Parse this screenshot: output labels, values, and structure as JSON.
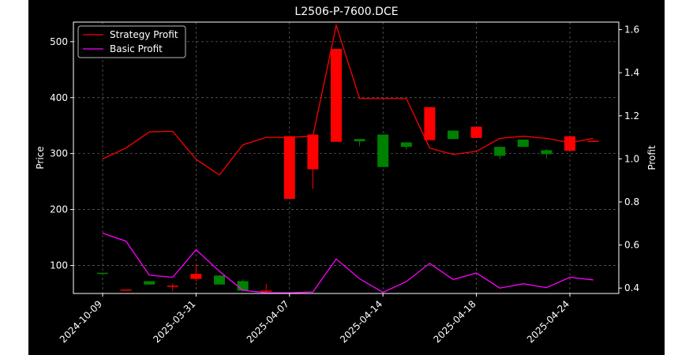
{
  "page": {
    "outer_background": "#ffffff",
    "figure_background": "#000000"
  },
  "chart_data": {
    "type": "candlestick",
    "title": "L2506-P-7600.DCE",
    "ylabel_left": "Price",
    "ylabel_right": "Profit",
    "xlabel": "",
    "grid": true,
    "legend_position": "top-left",
    "ylim_left": [
      50,
      535
    ],
    "ylim_right": [
      0.375,
      1.635
    ],
    "yticks_left": [
      100,
      200,
      300,
      400,
      500
    ],
    "yticks_right": [
      "0.4",
      "0.6",
      "0.8",
      "1.0",
      "1.2",
      "1.4",
      "1.6"
    ],
    "x_tick_labels": [
      {
        "i": 0,
        "label": "2024-10-09"
      },
      {
        "i": 4,
        "label": "2025-03-31"
      },
      {
        "i": 8,
        "label": "2025-04-07"
      },
      {
        "i": 12,
        "label": "2025-04-14"
      },
      {
        "i": 16,
        "label": "2025-04-18"
      },
      {
        "i": 20,
        "label": "2025-04-24"
      }
    ],
    "candles": [
      {
        "i": 0,
        "open": 87,
        "close": 85,
        "high": 87,
        "low": 85
      },
      {
        "i": 1,
        "open": 57,
        "close": 57,
        "high": 57,
        "low": 57
      },
      {
        "i": 2,
        "open": 72,
        "close": 66,
        "high": 72,
        "low": 65
      },
      {
        "i": 3,
        "open": 62,
        "close": 64,
        "high": 68,
        "low": 54
      },
      {
        "i": 4,
        "open": 76,
        "close": 85,
        "high": 103,
        "low": 72
      },
      {
        "i": 5,
        "open": 82,
        "close": 66,
        "high": 82,
        "low": 66
      },
      {
        "i": 6,
        "open": 72,
        "close": 55,
        "high": 75,
        "low": 53
      },
      {
        "i": 7,
        "open": 55,
        "close": 55,
        "high": 67,
        "low": 50
      },
      {
        "i": 8,
        "open": 219,
        "close": 331,
        "high": 331,
        "low": 219
      },
      {
        "i": 9,
        "open": 272,
        "close": 334,
        "high": 334,
        "low": 237
      },
      {
        "i": 10,
        "open": 321,
        "close": 487,
        "high": 487,
        "low": 321
      },
      {
        "i": 11,
        "open": 326,
        "close": 322,
        "high": 326,
        "low": 313
      },
      {
        "i": 12,
        "open": 334,
        "close": 276,
        "high": 334,
        "low": 276
      },
      {
        "i": 13,
        "open": 320,
        "close": 312,
        "high": 320,
        "low": 307
      },
      {
        "i": 14,
        "open": 324,
        "close": 383,
        "high": 383,
        "low": 324
      },
      {
        "i": 15,
        "open": 341,
        "close": 326,
        "high": 341,
        "low": 326
      },
      {
        "i": 16,
        "open": 328,
        "close": 348,
        "high": 348,
        "low": 328
      },
      {
        "i": 17,
        "open": 312,
        "close": 296,
        "high": 312,
        "low": 290
      },
      {
        "i": 18,
        "open": 325,
        "close": 312,
        "high": 325,
        "low": 312
      },
      {
        "i": 19,
        "open": 306,
        "close": 299,
        "high": 308,
        "low": 291
      },
      {
        "i": 20,
        "open": 305,
        "close": 331,
        "high": 331,
        "low": 305
      },
      {
        "i": 21,
        "open": 323,
        "close": 323,
        "high": 323,
        "low": 323
      }
    ],
    "series": [
      {
        "name": "Strategy Profit",
        "color": "#ff0000",
        "axis": "right",
        "values": [
          1.0,
          1.05,
          1.125,
          1.128,
          0.998,
          0.925,
          1.065,
          1.1,
          1.1,
          1.105,
          1.62,
          1.28,
          1.28,
          1.28,
          1.05,
          1.02,
          1.035,
          1.095,
          1.105,
          1.095,
          1.075,
          1.095
        ]
      },
      {
        "name": "Basic Profit",
        "color": "#ff00ff",
        "axis": "right",
        "values": [
          0.655,
          0.618,
          0.46,
          0.45,
          0.578,
          0.478,
          0.39,
          0.378,
          0.378,
          0.382,
          0.535,
          0.443,
          0.38,
          0.43,
          0.515,
          0.44,
          0.47,
          0.4,
          0.42,
          0.402,
          0.45,
          0.438
        ]
      }
    ],
    "candle_colors": {
      "up": "#ff0000",
      "down": "#008000"
    }
  }
}
